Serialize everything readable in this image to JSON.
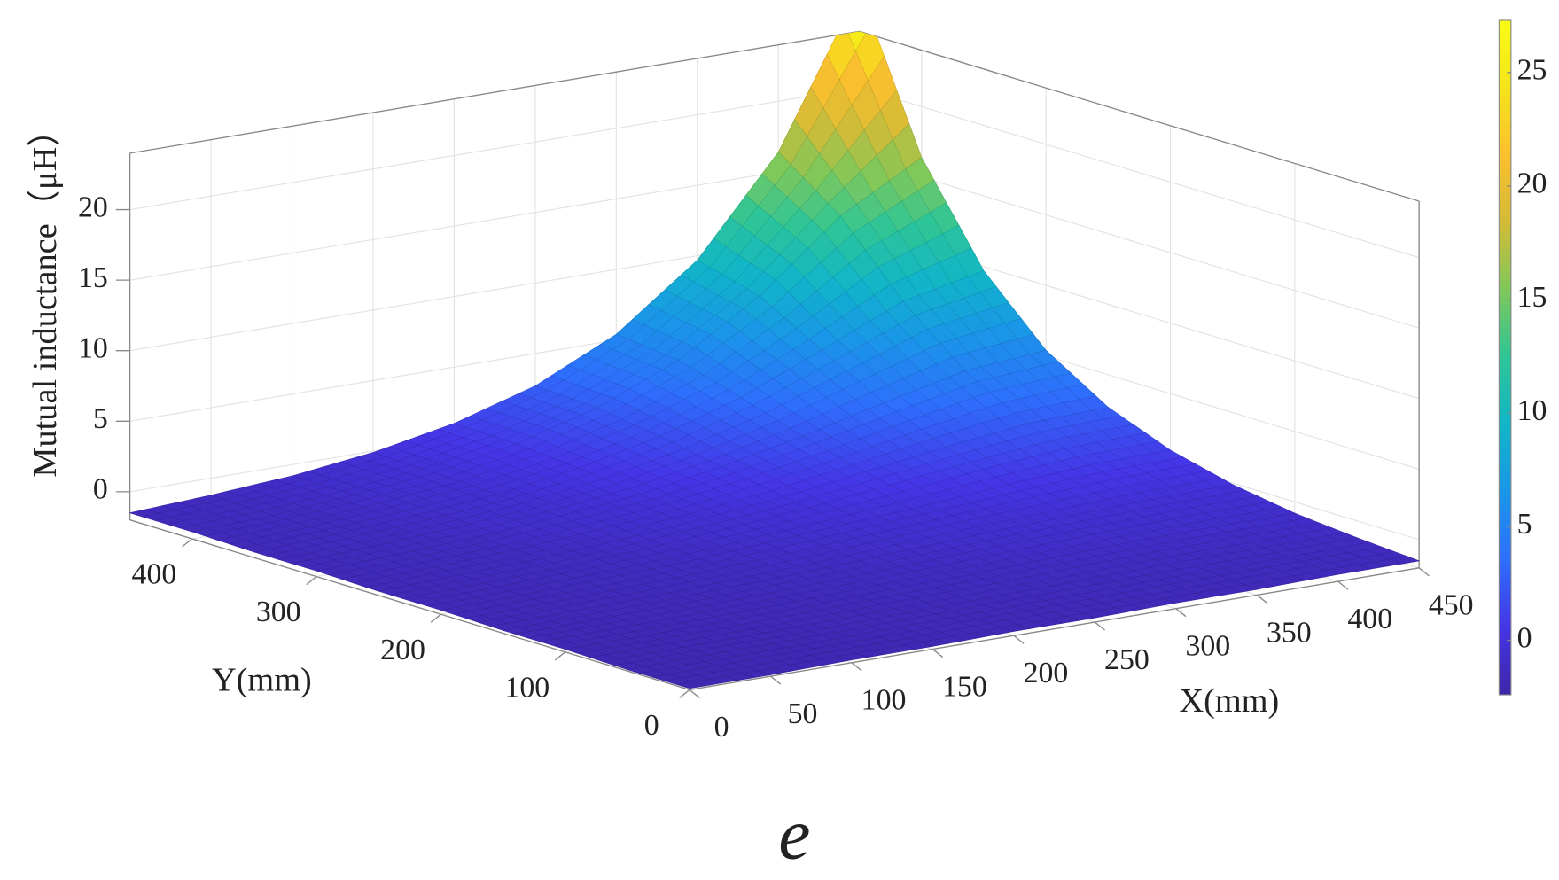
{
  "chart_data": {
    "type": "surface",
    "zlabel": "Mutual inductance（μH）",
    "xlabel": "X(mm)",
    "ylabel": "Y(mm)",
    "caption": "e",
    "x": [
      0,
      50,
      100,
      150,
      200,
      250,
      300,
      350,
      400,
      450
    ],
    "y": [
      0,
      50,
      100,
      150,
      200,
      250,
      300,
      350,
      400,
      450
    ],
    "z": [
      [
        -1.9,
        -1.9,
        -1.8,
        -1.8,
        -1.7,
        -1.7,
        -1.6,
        -1.6,
        -1.5,
        -1.5
      ],
      [
        -1.9,
        -1.8,
        -1.8,
        -1.7,
        -1.6,
        -1.5,
        -1.4,
        -1.3,
        -1.3,
        -1.2
      ],
      [
        -1.8,
        -1.8,
        -1.7,
        -1.6,
        -1.4,
        -1.3,
        -1.1,
        -0.9,
        -0.8,
        -0.8
      ],
      [
        -1.8,
        -1.7,
        -1.6,
        -1.4,
        -1.2,
        -0.9,
        -0.6,
        -0.4,
        -0.2,
        -0.1
      ],
      [
        -1.7,
        -1.6,
        -1.4,
        -1.2,
        -0.8,
        -0.4,
        0.0,
        0.5,
        0.9,
        1.0
      ],
      [
        -1.7,
        -1.5,
        -1.3,
        -0.9,
        -0.4,
        0.2,
        1.0,
        1.8,
        2.5,
        2.7
      ],
      [
        -1.6,
        -1.4,
        -1.1,
        -0.6,
        0.0,
        1.0,
        2.2,
        3.6,
        4.9,
        5.4
      ],
      [
        -1.6,
        -1.3,
        -0.9,
        -0.4,
        0.5,
        1.8,
        3.6,
        6.0,
        8.5,
        9.7
      ],
      [
        -1.5,
        -1.3,
        -0.8,
        -0.2,
        0.9,
        2.5,
        4.9,
        8.5,
        13.2,
        16.4
      ],
      [
        -1.5,
        -1.2,
        -0.8,
        -0.1,
        1.0,
        2.7,
        5.4,
        9.7,
        16.4,
        27.0
      ]
    ],
    "xlim": [
      0,
      450
    ],
    "ylim": [
      0,
      450
    ],
    "zlim": [
      -2,
      24
    ],
    "xticks": [
      0,
      50,
      100,
      150,
      200,
      250,
      300,
      350,
      400,
      450
    ],
    "yticks": [
      0,
      100,
      200,
      300,
      400
    ],
    "zticks": [
      0,
      5,
      10,
      15,
      20
    ],
    "colorbar": {
      "clim": [
        -2.4,
        27.3
      ],
      "ticks": [
        0,
        5,
        10,
        15,
        20,
        25
      ]
    },
    "colormap": [
      "#3e26a8",
      "#4535e6",
      "#2e6ffc",
      "#1a96e8",
      "#11b5c8",
      "#2ec597",
      "#7fc85a",
      "#d3bb37",
      "#fbbf2e",
      "#f5e51a",
      "#f9fb15"
    ],
    "grid": true
  }
}
